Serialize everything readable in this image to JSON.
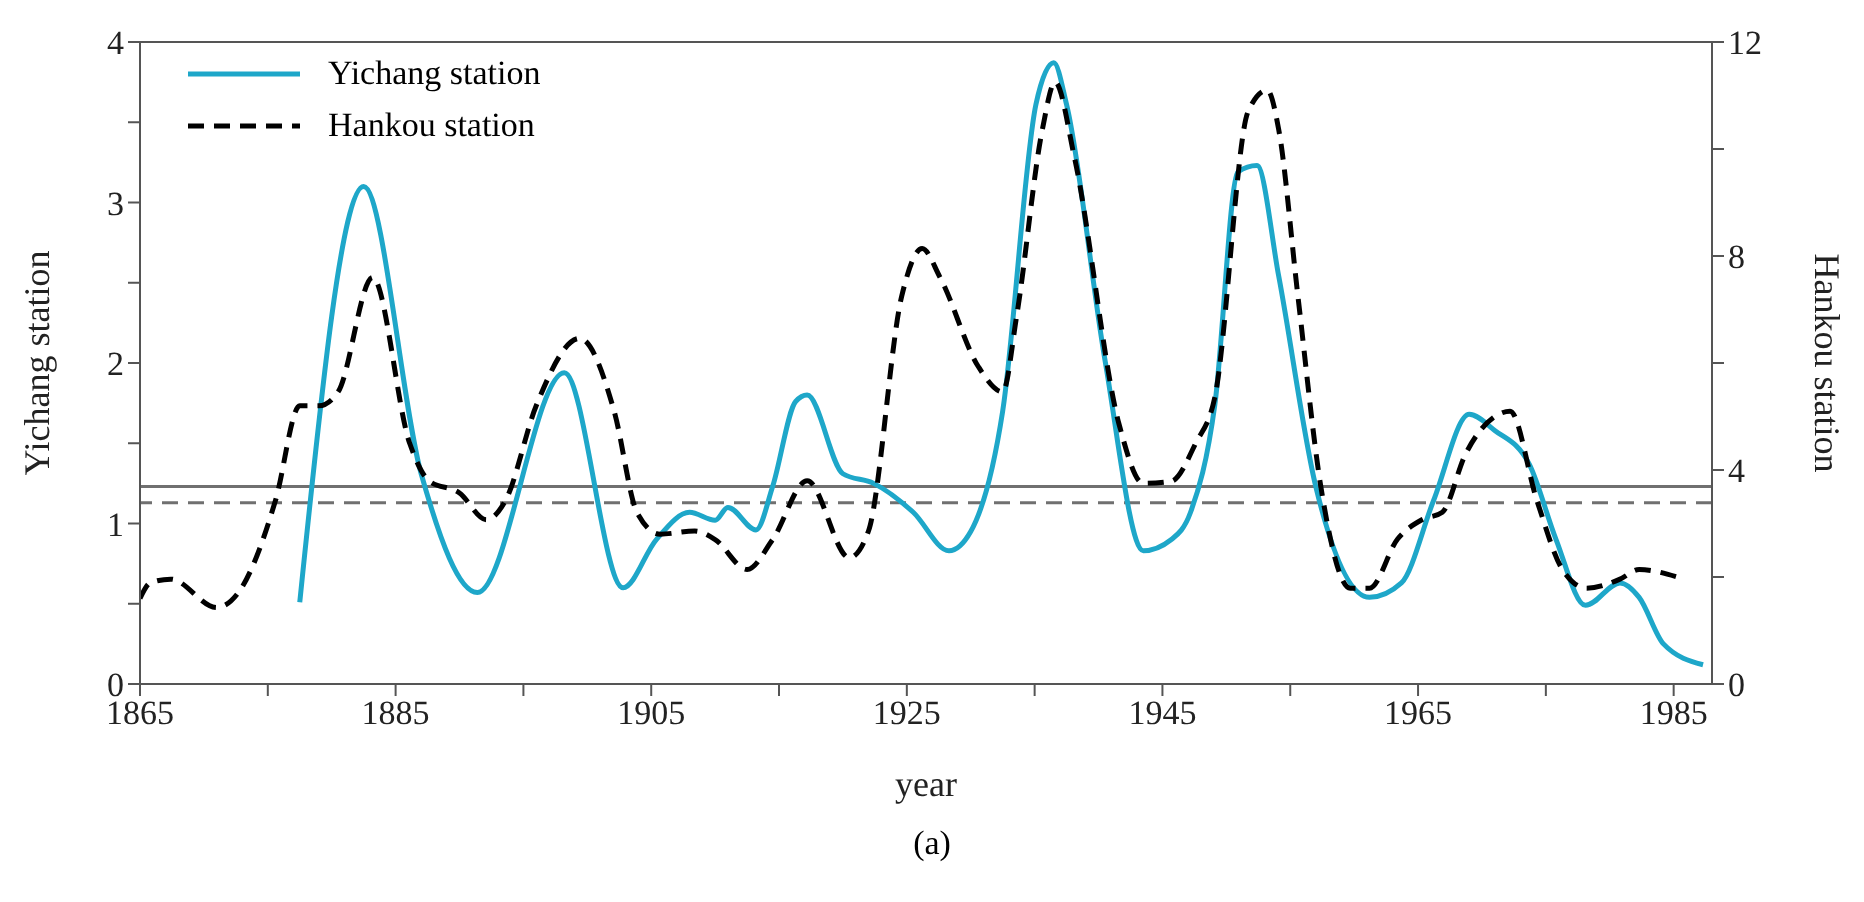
{
  "chart_data": {
    "type": "line",
    "xlabel": "year",
    "ylabel": "Yichang station",
    "y2label": "Hankou station",
    "annotations": [
      "(a)"
    ],
    "legend": "top left",
    "marker": "none",
    "xlim": [
      1865,
      1988
    ],
    "xticks": [
      1865,
      {
        "value": 1875,
        "label": null
      },
      1885,
      {
        "value": 1895,
        "label": null
      },
      1905,
      {
        "value": 1915,
        "label": null
      },
      1925,
      {
        "value": 1935,
        "label": null
      },
      1945,
      {
        "value": 1955,
        "label": null
      },
      1965,
      {
        "value": 1975,
        "label": null
      },
      1985
    ],
    "ylim": [
      0,
      4
    ],
    "yticks": [
      0,
      {
        "value": 0.5,
        "label": null
      },
      1,
      {
        "value": 1.5,
        "label": null
      },
      2,
      {
        "value": 2.5,
        "label": null
      },
      3,
      {
        "value": 3.5,
        "label": null
      },
      4
    ],
    "y2lim": [
      0,
      12
    ],
    "y2ticks": [
      0,
      {
        "value": 2,
        "label": null
      },
      4,
      {
        "value": 6,
        "label": null
      },
      8,
      {
        "value": 10,
        "label": null
      },
      12
    ],
    "ref_lines": [
      {
        "axis": "y",
        "value": 1.23,
        "color": "#707070",
        "line_style": "solid"
      },
      {
        "axis": "y2",
        "value": 3.39,
        "color": "#707070",
        "line_style": "dashed"
      }
    ],
    "series": [
      {
        "name": "Yichang station",
        "color": "#1ea7c9",
        "line_style": "solid",
        "x": [
          1877.5,
          1882.5,
          1887,
          1891.4,
          1898.2,
          1902.8,
          1905.4,
          1908,
          1910,
          1911,
          1913.2,
          1914.5,
          1916.3,
          1917.2,
          1920,
          1922.4,
          1925.5,
          1928.3,
          1930,
          1932.5,
          1935.1,
          1936.5,
          1937.5,
          1940.5,
          1943.5,
          1945.7,
          1947.2,
          1949.1,
          1950.9,
          1952.4,
          1954.1,
          1957,
          1961.2,
          1963.7,
          1966.2,
          1969,
          1971,
          1973.7,
          1975.8,
          1978.1,
          1980.8,
          1982.3,
          1984.2,
          1987.3
        ],
        "values": [
          0.51,
          3.1,
          1.31,
          0.57,
          1.94,
          0.6,
          0.9,
          1.07,
          1.02,
          1.1,
          0.96,
          1.23,
          1.76,
          1.8,
          1.31,
          1.25,
          1.07,
          0.83,
          0.95,
          1.7,
          3.61,
          3.87,
          3.61,
          2.02,
          0.83,
          0.9,
          1.07,
          1.74,
          3.19,
          3.23,
          2.54,
          1.23,
          0.54,
          0.63,
          1.14,
          1.68,
          1.58,
          1.37,
          0.9,
          0.49,
          0.63,
          0.54,
          0.25,
          0.12
        ]
      },
      {
        "name": "Hankou station",
        "color": "#000000",
        "axis": "y2",
        "line_style": "dashed",
        "x": [
          1865,
          1865.8,
          1867.4,
          1871,
          1872.7,
          1875.6,
          1877.5,
          1879,
          1880.5,
          1883.2,
          1886.1,
          1887.6,
          1890,
          1892.1,
          1893.6,
          1896,
          1899.4,
          1902.1,
          1903.9,
          1905.7,
          1908.4,
          1910,
          1912.5,
          1914.5,
          1917.2,
          1920.5,
          1922,
          1924.6,
          1926.2,
          1927.6,
          1930.6,
          1932.5,
          1933.6,
          1935.6,
          1936.6,
          1938.1,
          1941.6,
          1943.5,
          1945.7,
          1947.6,
          1949.1,
          1951.7,
          1953.2,
          1954.1,
          1955.6,
          1957.4,
          1959.7,
          1961.2,
          1963.4,
          1965.3,
          1966.9,
          1968.7,
          1971.3,
          1972.2,
          1974.3,
          1976.3,
          1978.2,
          1980.8,
          1982.3,
          1985.3
        ],
        "values": [
          1.6,
          1.89,
          1.96,
          1.43,
          1.71,
          3.43,
          5.2,
          5.2,
          5.46,
          7.6,
          4.5,
          3.8,
          3.57,
          3.07,
          3.43,
          5.2,
          6.46,
          5.1,
          3.2,
          2.8,
          2.86,
          2.7,
          2.14,
          2.7,
          3.8,
          2.36,
          2.86,
          7.25,
          8.14,
          7.6,
          5.93,
          5.46,
          6.89,
          10.36,
          11.25,
          9.86,
          4.86,
          3.75,
          3.79,
          4.5,
          5.36,
          10.7,
          11.1,
          10.36,
          7.25,
          3.68,
          1.79,
          1.79,
          2.71,
          3.07,
          3.21,
          4.29,
          5.04,
          5.1,
          3.43,
          2.14,
          1.79,
          1.96,
          2.14,
          2.0
        ]
      }
    ]
  }
}
